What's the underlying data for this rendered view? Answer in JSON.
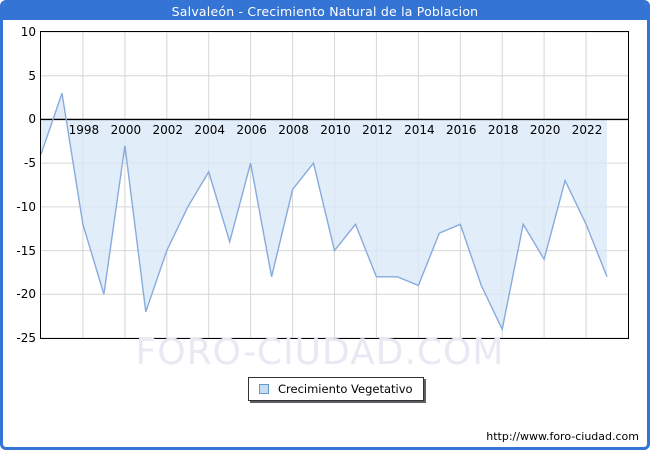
{
  "title": "Salvaleón - Crecimiento Natural de la Poblacion",
  "legend": {
    "label": "Crecimiento Vegetativo",
    "swatch_fill": "#c7ddf2",
    "swatch_border": "#6699cc"
  },
  "watermark": "FORO-CIUDAD.COM",
  "footer": {
    "url": "http://www.foro-ciudad.com"
  },
  "colors": {
    "titlebar": "#3474d4",
    "frame": "#3474d4",
    "area_fill": "#d9e8f8",
    "line": "#87abdc",
    "gridline": "#d6d6d6",
    "zero_line": "#000000",
    "watermark": "#e9e8f3"
  },
  "chart_data": {
    "type": "area",
    "title": "Salvaleón - Crecimiento Natural de la Poblacion",
    "xlabel": "",
    "ylabel": "",
    "x": [
      1996,
      1997,
      1998,
      1999,
      2000,
      2001,
      2002,
      2003,
      2004,
      2005,
      2006,
      2007,
      2008,
      2009,
      2010,
      2011,
      2012,
      2013,
      2014,
      2015,
      2016,
      2017,
      2018,
      2019,
      2020,
      2021,
      2022,
      2023
    ],
    "series": [
      {
        "name": "Crecimiento Vegetativo",
        "values": [
          -4,
          3,
          -12,
          -20,
          -3,
          -22,
          -15,
          -10,
          -6,
          -14,
          -5,
          -18,
          -8,
          -5,
          -15,
          -12,
          -18,
          -18,
          -19,
          -13,
          -12,
          -19,
          -24,
          -12,
          -16,
          -7,
          -12,
          -18
        ]
      }
    ],
    "baseline": 0,
    "xlim": [
      1996,
      2024
    ],
    "ylim": [
      -25,
      10
    ],
    "y_ticks": [
      10,
      5,
      0,
      -5,
      -10,
      -15,
      -20,
      -25
    ],
    "x_tick_labels": [
      1998,
      2000,
      2002,
      2004,
      2006,
      2008,
      2010,
      2012,
      2014,
      2016,
      2018,
      2020,
      2022
    ],
    "grid": true,
    "legend_position": "bottom-center"
  }
}
